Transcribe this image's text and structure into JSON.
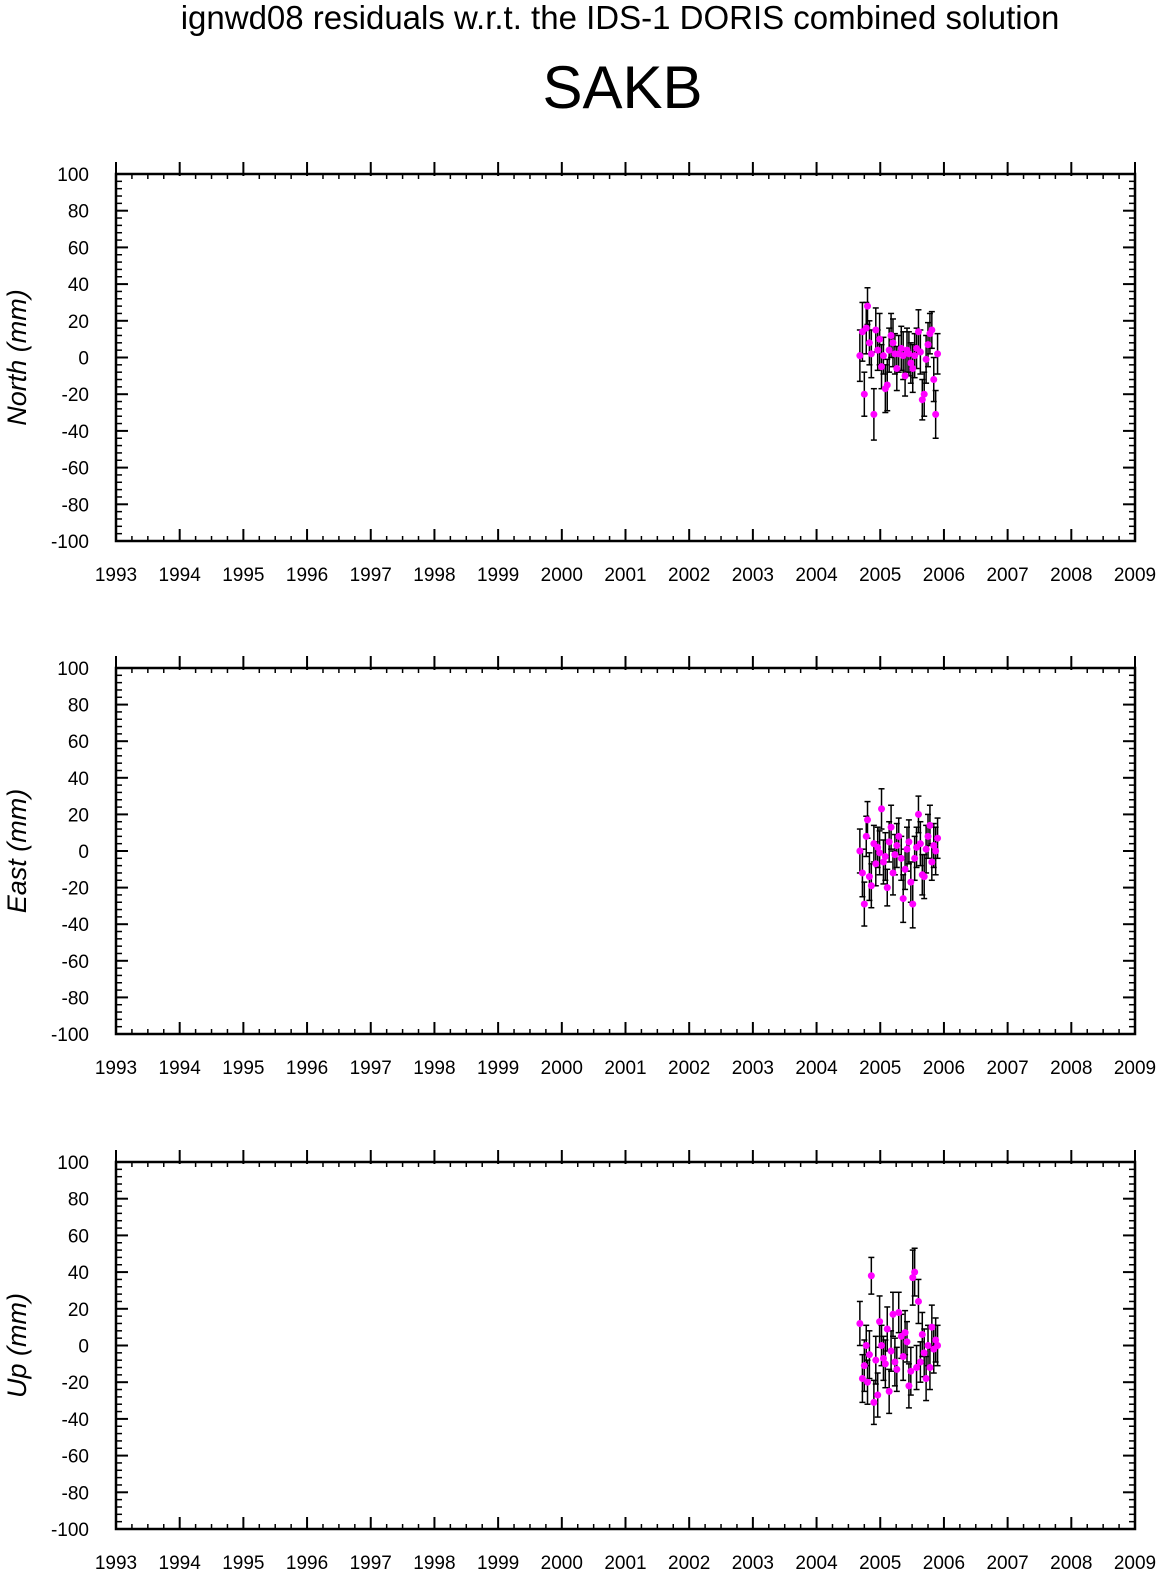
{
  "title": "ignwd08 residuals w.r.t. the IDS-1 DORIS combined solution",
  "station": "SAKB",
  "colors": {
    "marker": "#ff00ff",
    "errorbar": "#000000",
    "axis": "#000000",
    "background": "#ffffff"
  },
  "chart_data": [
    {
      "type": "scatter",
      "ylabel": "North (mm)",
      "xlim": [
        1993,
        2009
      ],
      "ylim": [
        -100,
        100
      ],
      "x_ticks": [
        1993,
        1994,
        1995,
        1996,
        1997,
        1998,
        1999,
        2000,
        2001,
        2002,
        2003,
        2004,
        2005,
        2006,
        2007,
        2008,
        2009
      ],
      "y_ticks": [
        -100,
        -80,
        -60,
        -40,
        -20,
        0,
        20,
        40,
        60,
        80,
        100
      ],
      "grid": false,
      "error_bars": true,
      "series": [
        {
          "x": [
            2004.68,
            2004.72,
            2004.75,
            2004.78,
            2004.8,
            2004.83,
            2004.86,
            2004.9,
            2004.93,
            2004.96,
            2004.99,
            2005.02,
            2005.05,
            2005.08,
            2005.11,
            2005.14,
            2005.17,
            2005.2,
            2005.23,
            2005.26,
            2005.29,
            2005.33,
            2005.36,
            2005.39,
            2005.42,
            2005.45,
            2005.48,
            2005.51,
            2005.54,
            2005.57,
            2005.6,
            2005.63,
            2005.66,
            2005.69,
            2005.72,
            2005.75,
            2005.78,
            2005.81,
            2005.84,
            2005.87,
            2005.9
          ],
          "y": [
            1,
            14,
            -20,
            16,
            28,
            8,
            2,
            -31,
            15,
            4,
            10,
            -5,
            1,
            -17,
            -15,
            4,
            12,
            8,
            2,
            -6,
            2,
            5,
            1,
            -10,
            4,
            2,
            -3,
            -6,
            1,
            5,
            14,
            3,
            -23,
            -20,
            -1,
            7,
            13,
            15,
            -12,
            -31,
            2
          ],
          "err": [
            14,
            16,
            12,
            14,
            10,
            12,
            13,
            14,
            12,
            11,
            14,
            12,
            10,
            13,
            14,
            12,
            12,
            13,
            11,
            12,
            10,
            12,
            13,
            11,
            12,
            12,
            11,
            13,
            12,
            11,
            12,
            12,
            11,
            12,
            13,
            12,
            11,
            10,
            12,
            13,
            11
          ]
        }
      ]
    },
    {
      "type": "scatter",
      "ylabel": "East (mm)",
      "xlim": [
        1993,
        2009
      ],
      "ylim": [
        -100,
        100
      ],
      "x_ticks": [
        1993,
        1994,
        1995,
        1996,
        1997,
        1998,
        1999,
        2000,
        2001,
        2002,
        2003,
        2004,
        2005,
        2006,
        2007,
        2008,
        2009
      ],
      "y_ticks": [
        -100,
        -80,
        -60,
        -40,
        -20,
        0,
        20,
        40,
        60,
        80,
        100
      ],
      "grid": false,
      "error_bars": true,
      "series": [
        {
          "x": [
            2004.68,
            2004.72,
            2004.75,
            2004.78,
            2004.8,
            2004.83,
            2004.86,
            2004.9,
            2004.93,
            2004.96,
            2004.99,
            2005.02,
            2005.05,
            2005.08,
            2005.11,
            2005.14,
            2005.17,
            2005.2,
            2005.23,
            2005.26,
            2005.29,
            2005.33,
            2005.36,
            2005.39,
            2005.42,
            2005.45,
            2005.48,
            2005.51,
            2005.54,
            2005.57,
            2005.6,
            2005.63,
            2005.66,
            2005.69,
            2005.72,
            2005.75,
            2005.78,
            2005.81,
            2005.84,
            2005.87,
            2005.9
          ],
          "y": [
            0,
            -12,
            -29,
            8,
            17,
            -14,
            -19,
            4,
            -7,
            2,
            -1,
            23,
            -6,
            -3,
            -20,
            5,
            13,
            -12,
            -2,
            3,
            8,
            -4,
            -26,
            -10,
            1,
            5,
            -17,
            -29,
            -4,
            2,
            20,
            4,
            -13,
            -14,
            1,
            8,
            14,
            -6,
            3,
            0,
            7
          ],
          "err": [
            12,
            13,
            12,
            11,
            10,
            13,
            12,
            10,
            12,
            11,
            12,
            11,
            12,
            13,
            10,
            11,
            12,
            12,
            11,
            12,
            10,
            12,
            13,
            11,
            12,
            12,
            11,
            13,
            12,
            11,
            10,
            12,
            11,
            12,
            13,
            12,
            11,
            10,
            12,
            13,
            11
          ]
        }
      ]
    },
    {
      "type": "scatter",
      "ylabel": "Up (mm)",
      "xlim": [
        1993,
        2009
      ],
      "ylim": [
        -100,
        100
      ],
      "x_ticks": [
        1993,
        1994,
        1995,
        1996,
        1997,
        1998,
        1999,
        2000,
        2001,
        2002,
        2003,
        2004,
        2005,
        2006,
        2007,
        2008,
        2009
      ],
      "y_ticks": [
        -100,
        -80,
        -60,
        -40,
        -20,
        0,
        20,
        40,
        60,
        80,
        100
      ],
      "grid": false,
      "error_bars": true,
      "series": [
        {
          "x": [
            2004.68,
            2004.72,
            2004.75,
            2004.78,
            2004.8,
            2004.83,
            2004.86,
            2004.9,
            2004.93,
            2004.96,
            2004.99,
            2005.02,
            2005.05,
            2005.08,
            2005.11,
            2005.14,
            2005.17,
            2005.2,
            2005.23,
            2005.26,
            2005.29,
            2005.33,
            2005.36,
            2005.39,
            2005.42,
            2005.45,
            2005.48,
            2005.51,
            2005.54,
            2005.57,
            2005.6,
            2005.63,
            2005.66,
            2005.69,
            2005.72,
            2005.75,
            2005.78,
            2005.81,
            2005.84,
            2005.87,
            2005.9
          ],
          "y": [
            12,
            -18,
            -11,
            0,
            -20,
            -5,
            38,
            -31,
            -8,
            -27,
            13,
            0,
            -7,
            -10,
            9,
            -25,
            -3,
            17,
            -9,
            -13,
            18,
            5,
            -6,
            7,
            2,
            -22,
            -14,
            37,
            40,
            -12,
            24,
            -9,
            6,
            -4,
            -18,
            0,
            -12,
            10,
            -2,
            3,
            0
          ],
          "err": [
            12,
            13,
            14,
            11,
            12,
            13,
            10,
            12,
            13,
            12,
            14,
            11,
            12,
            13,
            12,
            12,
            11,
            12,
            13,
            12,
            11,
            12,
            13,
            12,
            11,
            12,
            13,
            15,
            13,
            12,
            12,
            11,
            12,
            13,
            12,
            11,
            12,
            12,
            13,
            12,
            11
          ]
        }
      ]
    }
  ]
}
